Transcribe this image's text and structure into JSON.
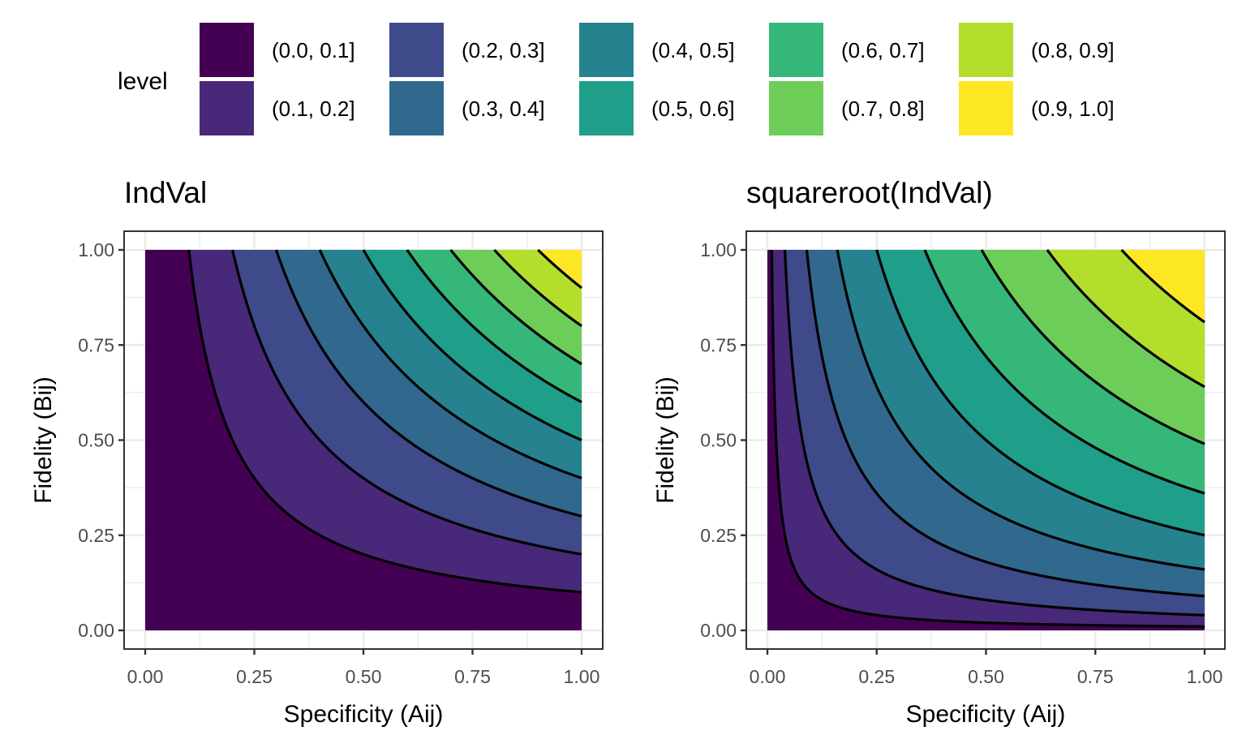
{
  "legend": {
    "title": "level",
    "entries": [
      "(0.0, 0.1]",
      "(0.1, 0.2]",
      "(0.2, 0.3]",
      "(0.3, 0.4]",
      "(0.4, 0.5]",
      "(0.5, 0.6]",
      "(0.6, 0.7]",
      "(0.7, 0.8]",
      "(0.8, 0.9]",
      "(0.9, 1.0]"
    ],
    "colors": [
      "#440154",
      "#482878",
      "#3E4A89",
      "#31688E",
      "#26828E",
      "#1F9E89",
      "#35B779",
      "#6DCD59",
      "#B4DE2C",
      "#FDE725"
    ],
    "placement": "top"
  },
  "chart_data": [
    {
      "type": "contour",
      "title": "IndVal",
      "xlabel": "Specificity (Aij)",
      "ylabel": "Fidelity (Bij)",
      "xlim": [
        0,
        1
      ],
      "ylim": [
        0,
        1
      ],
      "xticks": [
        "0.00",
        "0.25",
        "0.50",
        "0.75",
        "1.00"
      ],
      "yticks": [
        "0.00",
        "0.25",
        "0.50",
        "0.75",
        "1.00"
      ],
      "function": "A*B",
      "levels": [
        0.1,
        0.2,
        0.3,
        0.4,
        0.5,
        0.6,
        0.7,
        0.8,
        0.9
      ],
      "grid": true
    },
    {
      "type": "contour",
      "title": "squareroot(IndVal)",
      "xlabel": "Specificity (Aij)",
      "ylabel": "Fidelity (Bij)",
      "xlim": [
        0,
        1
      ],
      "ylim": [
        0,
        1
      ],
      "xticks": [
        "0.00",
        "0.25",
        "0.50",
        "0.75",
        "1.00"
      ],
      "yticks": [
        "0.00",
        "0.25",
        "0.50",
        "0.75",
        "1.00"
      ],
      "function": "sqrt(A*B)",
      "levels": [
        0.1,
        0.2,
        0.3,
        0.4,
        0.5,
        0.6,
        0.7,
        0.8,
        0.9
      ],
      "grid": true
    }
  ]
}
